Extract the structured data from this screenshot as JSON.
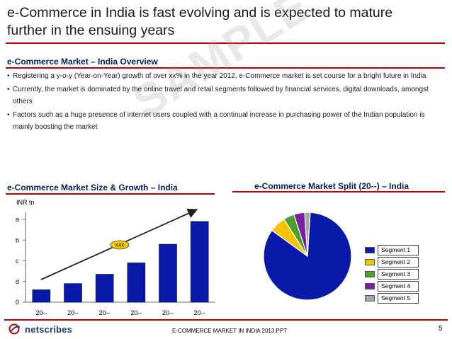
{
  "slide": {
    "title": "e-Commerce in India is fast evolving and is expected to mature further in the ensuing years",
    "watermark": "SAMPLE"
  },
  "overview": {
    "heading": "e-Commerce Market – India Overview",
    "bullets": [
      "Registering a y-o-y (Year-on-Year) growth of over xx% in the year 2012, e-Commerce market is set course for a bright future in India",
      "Currently, the market is dominated by the online travel and retail segments followed by financial services, digital downloads, amongst others",
      "Factors such as a huge presence of internet users coupled with a continual increase in purchasing power of the Indian population is mainly boosting the market"
    ]
  },
  "bar_section": {
    "heading": "e-Commerce Market Size & Growth – India"
  },
  "pie_section": {
    "heading": "e-Commerce Market Split (20--) – India"
  },
  "footer": {
    "logo_text": "netscribes",
    "center_text": "E-COMMERCE MARKET IN INDIA 2013.PPT",
    "page_number": "5"
  },
  "colors": {
    "accent_red": "#c00000",
    "heading_navy": "#00205b",
    "bar_blue": "#0a1aa8"
  },
  "chart_data": [
    {
      "type": "bar",
      "unit_label": "INR tn",
      "categories": [
        "20--",
        "20--",
        "20--",
        "20--",
        "20--",
        "20--"
      ],
      "values": [
        0.6,
        0.9,
        1.35,
        1.9,
        2.8,
        3.9
      ],
      "y_ticks": [
        "0",
        "d",
        "c",
        "b",
        "a"
      ],
      "ylim": [
        0,
        4
      ],
      "trend_label": "XXX",
      "grid": false
    },
    {
      "type": "pie",
      "segments": [
        {
          "name": "Segment 1",
          "value": 84,
          "color": "#0a1aa8"
        },
        {
          "name": "Segment 2",
          "value": 6,
          "color": "#f5c400"
        },
        {
          "name": "Segment 3",
          "value": 4,
          "color": "#4aa02c"
        },
        {
          "name": "Segment 4",
          "value": 4,
          "color": "#7a1fa2"
        },
        {
          "name": "Segment 5",
          "value": 2,
          "color": "#a6a6a6"
        }
      ],
      "legend_position": "right"
    }
  ]
}
